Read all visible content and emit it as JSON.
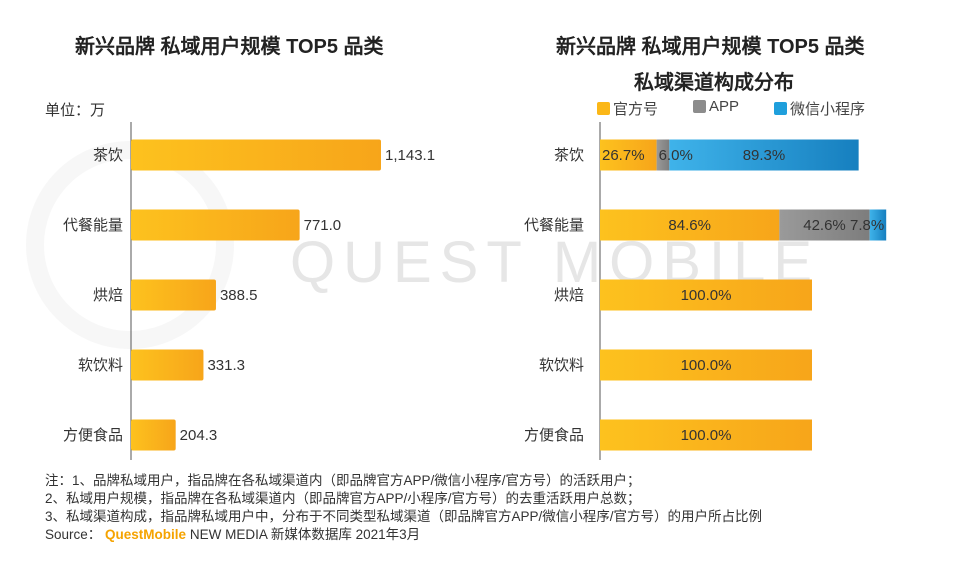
{
  "chart_data": [
    {
      "type": "bar",
      "orientation": "horizontal",
      "title": "新兴品牌 私域用户规模 TOP5 品类",
      "unit": "单位：万",
      "categories": [
        "茶饮",
        "代餐能量",
        "烘焙",
        "软饮料",
        "方便食品"
      ],
      "values": [
        1143.1,
        771.0,
        388.5,
        331.3,
        204.3
      ],
      "value_labels": [
        "1,143.1",
        "771.0",
        "388.5",
        "331.3",
        "204.3"
      ],
      "xlim": [
        0,
        1200
      ],
      "color": "#fbb717"
    },
    {
      "type": "bar",
      "orientation": "horizontal",
      "stacked": true,
      "title": "新兴品牌 私域用户规模 TOP5 品类",
      "subtitle": "私域渠道构成分布",
      "categories": [
        "茶饮",
        "代餐能量",
        "烘焙",
        "软饮料",
        "方便食品"
      ],
      "series": [
        {
          "name": "官方号",
          "color": "#fbb717",
          "values": [
            26.7,
            84.6,
            100.0,
            100.0,
            100.0
          ],
          "labels": [
            "26.7%",
            "84.6%",
            "100.0%",
            "100.0%",
            "100.0%"
          ]
        },
        {
          "name": "APP",
          "color": "#8c8c8c",
          "values": [
            6.0,
            42.6,
            0,
            0,
            0
          ],
          "labels": [
            "6.0%",
            "42.6%",
            "",
            "",
            ""
          ]
        },
        {
          "name": "微信小程序",
          "color": "#1f9fdc",
          "values": [
            89.3,
            7.8,
            0,
            0,
            0
          ],
          "labels": [
            "89.3%",
            "7.8%",
            "",
            "",
            ""
          ]
        }
      ],
      "legend_position": "top"
    }
  ],
  "notes": [
    "注：1、品牌私域用户，指品牌在各私域渠道内（即品牌官方APP/微信小程序/官方号）的活跃用户；",
    "2、私域用户规模，指品牌在各私域渠道内（即品牌官方APP/小程序/官方号）的去重活跃用户总数；",
    "3、私域渠道构成，指品牌私域用户中，分布于不同类型私域渠道（即品牌官方APP/微信小程序/官方号）的用户所占比例"
  ],
  "source": {
    "prefix": "Source：",
    "brand": "QuestMobile",
    "suffix": "NEW MEDIA 新媒体数据库 2021年3月"
  },
  "watermark": "QUESTMOBILE"
}
